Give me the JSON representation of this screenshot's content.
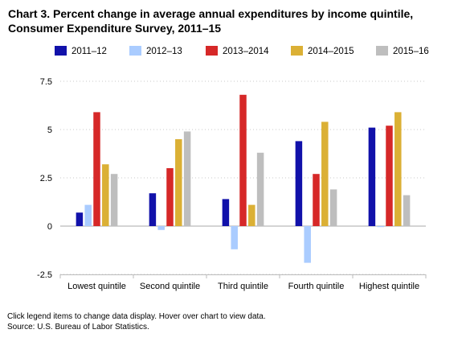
{
  "page_title_line1": "Chart 3. Percent change in average annual expenditures by income quintile,",
  "page_title_line2": "Consumer Expenditure Survey, 2011–15",
  "footer_note": "Click legend items to change data display. Hover over chart to view data.",
  "footer_source": "Source: U.S. Bureau of Labor Statistics.",
  "chart_data": {
    "type": "bar",
    "title": "Chart 3. Percent change in average annual expenditures by income quintile, Consumer Expenditure Survey, 2011–15",
    "xlabel": "",
    "ylabel": "",
    "categories": [
      "Lowest quintile",
      "Second quintile",
      "Third quintile",
      "Fourth quintile",
      "Highest quintile"
    ],
    "ylim": [
      -2.5,
      7.5
    ],
    "yticks": [
      -2.5,
      0,
      2.5,
      5,
      7.5
    ],
    "ytick_labels": [
      "-2.5",
      "0",
      "2.5",
      "5",
      "7.5"
    ],
    "grid": "horizontal dotted",
    "legend_position": "top",
    "series": [
      {
        "name": "2011–12",
        "color": "#1111aa",
        "values": [
          0.7,
          1.7,
          1.4,
          4.4,
          5.1
        ]
      },
      {
        "name": "2012–13",
        "color": "#aaccff",
        "values": [
          1.1,
          -0.2,
          -1.2,
          -1.9,
          -0.05
        ]
      },
      {
        "name": "2013–2014",
        "color": "#d62828",
        "values": [
          5.9,
          3.0,
          6.8,
          2.7,
          5.2
        ]
      },
      {
        "name": "2014–2015",
        "color": "#dbb035",
        "values": [
          3.2,
          4.5,
          1.1,
          5.4,
          5.9
        ]
      },
      {
        "name": "2015–16",
        "color": "#bebebe",
        "values": [
          2.7,
          4.9,
          3.8,
          1.9,
          1.6
        ]
      }
    ]
  }
}
